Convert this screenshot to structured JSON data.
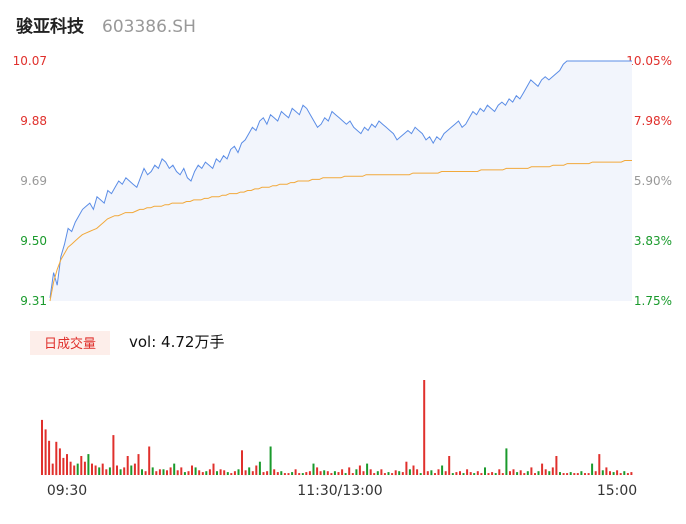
{
  "header": {
    "name": "骏亚科技",
    "code": "603386.SH"
  },
  "colors": {
    "up": "#e0302c",
    "down": "#1a9a2c",
    "neutral": "#999999",
    "price_line": "#5b8de6",
    "avg_line": "#f2a93b",
    "area_fill": "#f2f5fc"
  },
  "chart_data": {
    "type": "line",
    "price_ticks": [
      "10.07",
      "9.88",
      "9.69",
      "9.50",
      "9.31"
    ],
    "percent_ticks": [
      "10.05%",
      "7.98%",
      "5.90%",
      "3.83%",
      "1.75%"
    ],
    "ylim": [
      9.31,
      10.07
    ],
    "time_labels": [
      "09:30",
      "11:30/13:00",
      "15:00"
    ],
    "volume_badge": "日成交量",
    "volume_text": "vol: 4.72万手",
    "series": [
      {
        "values": [
          9.32,
          9.4,
          9.36,
          9.45,
          9.49,
          9.54,
          9.53,
          9.56,
          9.58,
          9.6,
          9.61,
          9.62,
          9.6,
          9.64,
          9.63,
          9.62,
          9.66,
          9.65,
          9.67,
          9.69,
          9.68,
          9.7,
          9.69,
          9.68,
          9.67,
          9.7,
          9.73,
          9.71,
          9.72,
          9.74,
          9.73,
          9.76,
          9.75,
          9.73,
          9.74,
          9.72,
          9.71,
          9.73,
          9.7,
          9.69,
          9.72,
          9.74,
          9.73,
          9.75,
          9.74,
          9.73,
          9.76,
          9.75,
          9.77,
          9.76,
          9.79,
          9.8,
          9.78,
          9.81,
          9.82,
          9.84,
          9.86,
          9.85,
          9.88,
          9.89,
          9.87,
          9.9,
          9.89,
          9.88,
          9.91,
          9.9,
          9.89,
          9.92,
          9.91,
          9.9,
          9.93,
          9.92,
          9.9,
          9.88,
          9.86,
          9.87,
          9.89,
          9.88,
          9.91,
          9.9,
          9.89,
          9.88,
          9.87,
          9.88,
          9.86,
          9.85,
          9.84,
          9.86,
          9.85,
          9.87,
          9.86,
          9.88,
          9.87,
          9.86,
          9.85,
          9.84,
          9.82,
          9.83,
          9.84,
          9.85,
          9.84,
          9.86,
          9.85,
          9.84,
          9.82,
          9.83,
          9.81,
          9.83,
          9.82,
          9.84,
          9.85,
          9.86,
          9.87,
          9.88,
          9.86,
          9.87,
          9.89,
          9.91,
          9.9,
          9.92,
          9.91,
          9.93,
          9.92,
          9.91,
          9.93,
          9.94,
          9.93,
          9.95,
          9.94,
          9.96,
          9.95,
          9.97,
          9.99,
          10.01,
          10.0,
          9.99,
          10.01,
          10.02,
          10.01,
          10.02,
          10.03,
          10.04,
          10.06,
          10.07,
          10.07,
          10.07,
          10.07,
          10.07,
          10.07,
          10.07,
          10.07,
          10.07,
          10.07,
          10.07,
          10.07,
          10.07,
          10.07,
          10.07,
          10.07,
          10.07,
          10.07,
          10.07
        ]
      },
      {
        "values": [
          9.31,
          9.37,
          9.41,
          9.44,
          9.46,
          9.48,
          9.49,
          9.5,
          9.51,
          9.52,
          9.525,
          9.53,
          9.535,
          9.54,
          9.55,
          9.56,
          9.57,
          9.575,
          9.58,
          9.58,
          9.585,
          9.59,
          9.59,
          9.59,
          9.595,
          9.6,
          9.6,
          9.605,
          9.605,
          9.61,
          9.61,
          9.61,
          9.615,
          9.615,
          9.62,
          9.62,
          9.62,
          9.62,
          9.625,
          9.625,
          9.63,
          9.63,
          9.63,
          9.635,
          9.635,
          9.64,
          9.64,
          9.64,
          9.645,
          9.645,
          9.65,
          9.65,
          9.65,
          9.655,
          9.655,
          9.66,
          9.66,
          9.665,
          9.665,
          9.67,
          9.67,
          9.67,
          9.675,
          9.675,
          9.68,
          9.68,
          9.68,
          9.685,
          9.685,
          9.69,
          9.69,
          9.69,
          9.69,
          9.695,
          9.695,
          9.695,
          9.7,
          9.7,
          9.7,
          9.7,
          9.7,
          9.7,
          9.705,
          9.705,
          9.705,
          9.705,
          9.705,
          9.705,
          9.71,
          9.71,
          9.71,
          9.71,
          9.71,
          9.71,
          9.71,
          9.71,
          9.71,
          9.71,
          9.71,
          9.71,
          9.71,
          9.715,
          9.715,
          9.715,
          9.715,
          9.715,
          9.715,
          9.715,
          9.715,
          9.72,
          9.72,
          9.72,
          9.72,
          9.72,
          9.72,
          9.72,
          9.72,
          9.72,
          9.72,
          9.72,
          9.725,
          9.725,
          9.725,
          9.725,
          9.725,
          9.725,
          9.725,
          9.73,
          9.73,
          9.73,
          9.73,
          9.73,
          9.73,
          9.73,
          9.735,
          9.735,
          9.735,
          9.735,
          9.735,
          9.735,
          9.74,
          9.74,
          9.74,
          9.74,
          9.745,
          9.745,
          9.745,
          9.745,
          9.745,
          9.745,
          9.745,
          9.75,
          9.75,
          9.75,
          9.75,
          9.75,
          9.75,
          9.75,
          9.75,
          9.75,
          9.755,
          9.755,
          9.755
        ]
      }
    ],
    "volume_max": 1.0,
    "volumes": [
      0.58,
      0.48,
      0.36,
      0.12,
      0.35,
      0.28,
      0.18,
      0.22,
      0.14,
      0.1,
      0.12,
      0.2,
      0.14,
      0.22,
      0.12,
      0.1,
      0.08,
      0.12,
      0.06,
      0.08,
      0.42,
      0.1,
      0.06,
      0.08,
      0.2,
      0.1,
      0.12,
      0.22,
      0.06,
      0.04,
      0.3,
      0.08,
      0.04,
      0.06,
      0.06,
      0.05,
      0.08,
      0.12,
      0.05,
      0.08,
      0.03,
      0.04,
      0.1,
      0.08,
      0.05,
      0.03,
      0.04,
      0.06,
      0.12,
      0.04,
      0.06,
      0.05,
      0.03,
      0.02,
      0.04,
      0.06,
      0.26,
      0.05,
      0.08,
      0.04,
      0.1,
      0.14,
      0.03,
      0.04,
      0.3,
      0.06,
      0.03,
      0.04,
      0.02,
      0.02,
      0.03,
      0.06,
      0.02,
      0.02,
      0.03,
      0.04,
      0.12,
      0.08,
      0.04,
      0.05,
      0.04,
      0.02,
      0.04,
      0.03,
      0.06,
      0.02,
      0.08,
      0.02,
      0.06,
      0.1,
      0.04,
      0.12,
      0.06,
      0.02,
      0.04,
      0.06,
      0.02,
      0.03,
      0.02,
      0.05,
      0.04,
      0.03,
      0.14,
      0.06,
      0.1,
      0.06,
      0.02,
      1.0,
      0.04,
      0.05,
      0.02,
      0.06,
      0.1,
      0.04,
      0.2,
      0.02,
      0.03,
      0.04,
      0.02,
      0.06,
      0.03,
      0.02,
      0.04,
      0.02,
      0.08,
      0.02,
      0.03,
      0.02,
      0.06,
      0.02,
      0.28,
      0.04,
      0.06,
      0.03,
      0.05,
      0.02,
      0.04,
      0.08,
      0.02,
      0.04,
      0.12,
      0.06,
      0.04,
      0.08,
      0.2,
      0.03,
      0.02,
      0.02,
      0.03,
      0.02,
      0.02,
      0.04,
      0.02,
      0.02,
      0.12,
      0.04,
      0.22,
      0.05,
      0.08,
      0.04,
      0.03,
      0.05,
      0.02,
      0.04,
      0.02,
      0.03
    ]
  }
}
